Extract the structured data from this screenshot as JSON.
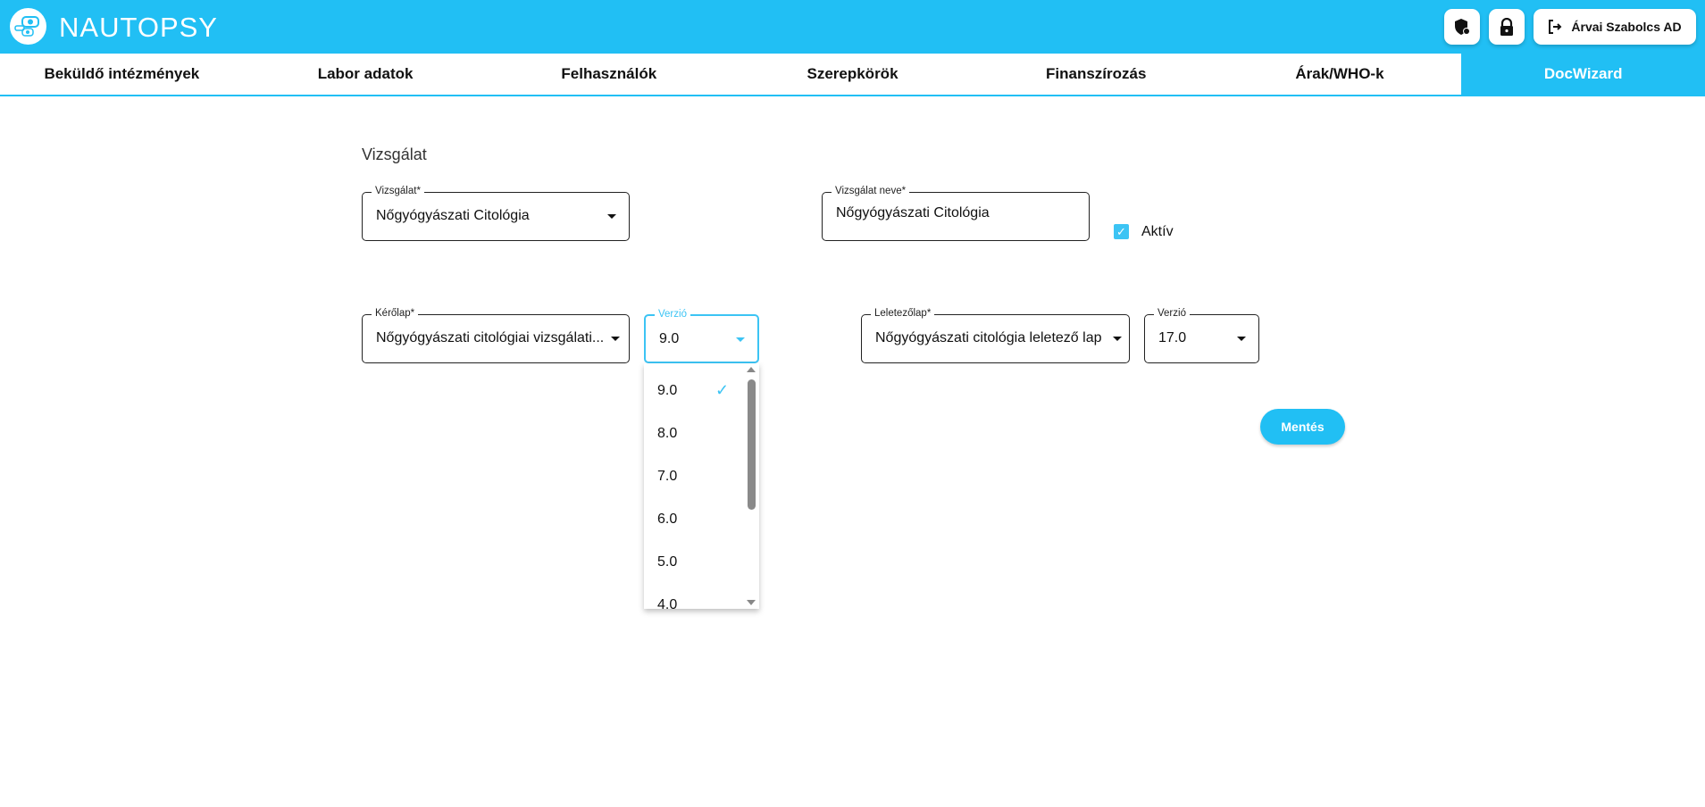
{
  "app": {
    "name": "NAUTOPSY",
    "accent": "#21bff4"
  },
  "header": {
    "user_label": "Árvai Szabolcs AD",
    "icons": [
      "shield-user-icon",
      "lock-icon",
      "logout-icon"
    ]
  },
  "nav": {
    "tabs": [
      {
        "label": "Beküldő intézmények"
      },
      {
        "label": "Labor adatok"
      },
      {
        "label": "Felhasználók"
      },
      {
        "label": "Szerepkörök"
      },
      {
        "label": "Finanszírozás"
      },
      {
        "label": "Árak/WHO-k"
      },
      {
        "label": "DocWizard",
        "active": true
      }
    ]
  },
  "form": {
    "section_title": "Vizsgálat",
    "vizsgalat": {
      "label": "Vizsgálat*",
      "value": "Nőgyógyászati Citológia"
    },
    "vizsgalat_neve": {
      "label": "Vizsgálat neve*",
      "value": "Nőgyógyászati Citológia"
    },
    "aktiv": {
      "label": "Aktív",
      "checked": true
    },
    "kerolap": {
      "label": "Kérőlap*",
      "value": "Nőgyógyászati citológiai vizsgálati..."
    },
    "kerolap_verzio": {
      "label": "Verzió",
      "value": "9.0",
      "options": [
        "9.0",
        "8.0",
        "7.0",
        "6.0",
        "5.0",
        "4.0"
      ]
    },
    "leletezolap": {
      "label": "Leletezőlap*",
      "value": "Nőgyógyászati citológia leletező lap"
    },
    "leletezolap_verzio": {
      "label": "Verzió",
      "value": "17.0"
    },
    "save_label": "Mentés"
  }
}
